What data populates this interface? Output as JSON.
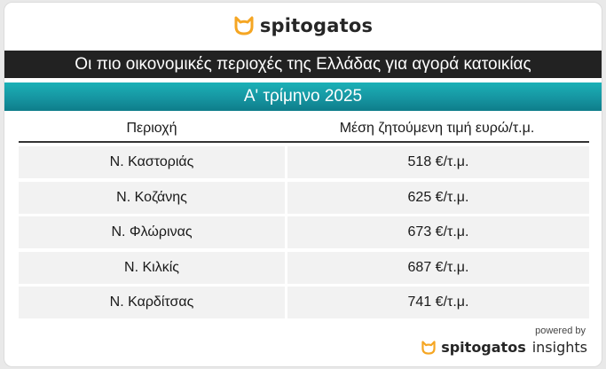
{
  "brand": {
    "name": "spitogatos",
    "icon": "cat-icon",
    "accent_color": "#f5a623"
  },
  "title": "Οι πιο οικονομικές περιοχές της Ελλάδας για αγορά κατοικίας",
  "subtitle": "Α' τρίμηνο 2025",
  "table": {
    "headers": {
      "area": "Περιοχή",
      "price": "Μέση ζητούμενη τιμή ευρώ/τ.μ."
    },
    "rows": [
      {
        "area": "Ν. Καστοριάς",
        "price": "518 €/τ.μ."
      },
      {
        "area": "Ν. Κοζάνης",
        "price": "625 €/τ.μ."
      },
      {
        "area": "Ν. Φλώρινας",
        "price": "673 €/τ.μ."
      },
      {
        "area": "Ν. Κιλκίς",
        "price": "687 €/τ.μ."
      },
      {
        "area": "Ν. Καρδίτσας",
        "price": "741 €/τ.μ."
      }
    ]
  },
  "footer": {
    "powered_by": "powered by",
    "brand": "spitogatos",
    "product": "insights"
  },
  "colors": {
    "title_bar": "#222222",
    "subtitle_bar": "#1695a1",
    "row_bg": "#f2f2f2"
  }
}
